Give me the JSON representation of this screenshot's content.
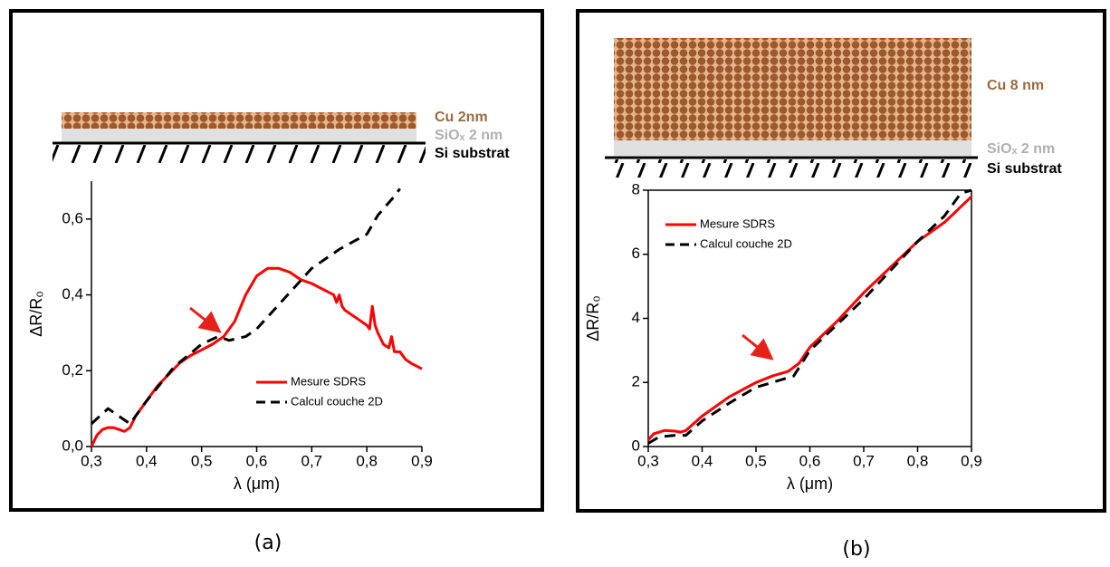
{
  "panels": [
    {
      "label": "(a)",
      "layers": [
        "Cu 2nm",
        "SiOₓ 2 nm",
        "Si substrat"
      ]
    },
    {
      "label": "(b)",
      "layers": [
        "Cu 8 nm",
        "SiOₓ 2 nm",
        "Si substrat"
      ]
    }
  ],
  "chart_data": [
    {
      "type": "line",
      "xlabel": "λ (μm)",
      "ylabel": "ΔR/R₀",
      "xlim": [
        0.3,
        0.9
      ],
      "ylim": [
        0,
        0.7
      ],
      "xticks": [
        {
          "value": 0.3,
          "label": "0,3"
        },
        {
          "value": 0.4,
          "label": "0,4"
        },
        {
          "value": 0.5,
          "label": "0,5"
        },
        {
          "value": 0.6,
          "label": "0,6"
        },
        {
          "value": 0.7,
          "label": "0,7"
        },
        {
          "value": 0.8,
          "label": "0,8"
        },
        {
          "value": 0.9,
          "label": "0,9"
        }
      ],
      "yticks": [
        {
          "value": 0,
          "label": "0,0"
        },
        {
          "value": 0.2,
          "label": "0,2"
        },
        {
          "value": 0.4,
          "label": "0,4"
        },
        {
          "value": 0.6,
          "label": "0,6"
        }
      ],
      "series": [
        {
          "name": "Mesure SDRS",
          "color": "#ff0000",
          "dash": false,
          "x": [
            0.3,
            0.31,
            0.32,
            0.33,
            0.34,
            0.35,
            0.36,
            0.37,
            0.38,
            0.4,
            0.42,
            0.44,
            0.46,
            0.48,
            0.5,
            0.52,
            0.54,
            0.56,
            0.58,
            0.6,
            0.62,
            0.64,
            0.66,
            0.68,
            0.7,
            0.72,
            0.74,
            0.745,
            0.75,
            0.755,
            0.76,
            0.78,
            0.8,
            0.805,
            0.81,
            0.815,
            0.82,
            0.83,
            0.84,
            0.845,
            0.85,
            0.86,
            0.87,
            0.88,
            0.9
          ],
          "values": [
            0.0,
            0.03,
            0.045,
            0.05,
            0.05,
            0.045,
            0.04,
            0.05,
            0.08,
            0.12,
            0.16,
            0.19,
            0.22,
            0.24,
            0.255,
            0.27,
            0.29,
            0.33,
            0.4,
            0.45,
            0.47,
            0.47,
            0.46,
            0.44,
            0.43,
            0.415,
            0.4,
            0.38,
            0.4,
            0.37,
            0.36,
            0.34,
            0.32,
            0.31,
            0.37,
            0.32,
            0.3,
            0.27,
            0.26,
            0.29,
            0.25,
            0.25,
            0.23,
            0.22,
            0.205
          ]
        },
        {
          "name": "Calcul couche 2D",
          "color": "#000000",
          "dash": true,
          "x": [
            0.3,
            0.33,
            0.35,
            0.37,
            0.4,
            0.45,
            0.5,
            0.53,
            0.55,
            0.58,
            0.6,
            0.65,
            0.7,
            0.75,
            0.8,
            0.82,
            0.85,
            0.86
          ],
          "values": [
            0.06,
            0.1,
            0.08,
            0.06,
            0.12,
            0.21,
            0.27,
            0.29,
            0.28,
            0.29,
            0.31,
            0.39,
            0.47,
            0.52,
            0.56,
            0.61,
            0.66,
            0.68
          ]
        }
      ]
    },
    {
      "type": "line",
      "xlabel": "λ (μm)",
      "ylabel": "ΔR/R₀",
      "xlim": [
        0.3,
        0.9
      ],
      "ylim": [
        0,
        8
      ],
      "xticks": [
        {
          "value": 0.3,
          "label": "0,3"
        },
        {
          "value": 0.4,
          "label": "0,4"
        },
        {
          "value": 0.5,
          "label": "0,5"
        },
        {
          "value": 0.6,
          "label": "0,6"
        },
        {
          "value": 0.7,
          "label": "0,7"
        },
        {
          "value": 0.8,
          "label": "0,8"
        },
        {
          "value": 0.9,
          "label": "0,9"
        }
      ],
      "yticks": [
        0,
        2,
        4,
        6,
        8
      ],
      "series": [
        {
          "name": "Mesure SDRS",
          "color": "#ff0000",
          "dash": false,
          "x": [
            0.3,
            0.31,
            0.33,
            0.35,
            0.36,
            0.37,
            0.4,
            0.45,
            0.5,
            0.53,
            0.56,
            0.58,
            0.6,
            0.65,
            0.7,
            0.75,
            0.8,
            0.85,
            0.9
          ],
          "values": [
            0.2,
            0.4,
            0.5,
            0.48,
            0.45,
            0.5,
            0.95,
            1.55,
            2.0,
            2.2,
            2.35,
            2.6,
            3.1,
            3.9,
            4.8,
            5.6,
            6.4,
            7.0,
            7.8
          ]
        },
        {
          "name": "Calcul couche 2D",
          "color": "#000000",
          "dash": true,
          "x": [
            0.3,
            0.32,
            0.35,
            0.37,
            0.4,
            0.45,
            0.5,
            0.55,
            0.57,
            0.6,
            0.65,
            0.7,
            0.75,
            0.8,
            0.85,
            0.88,
            0.9
          ],
          "values": [
            0.1,
            0.3,
            0.35,
            0.35,
            0.8,
            1.35,
            1.85,
            2.1,
            2.2,
            3.0,
            3.8,
            4.6,
            5.5,
            6.4,
            7.2,
            7.9,
            8.0
          ]
        }
      ]
    }
  ]
}
